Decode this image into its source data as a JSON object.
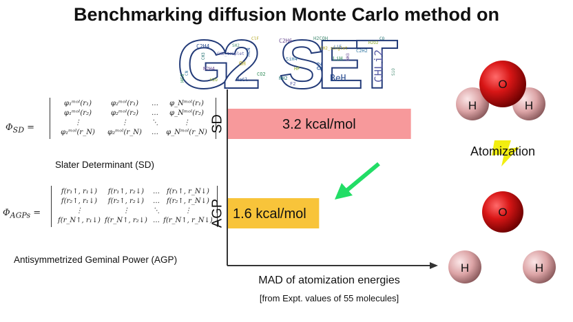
{
  "title": "Benchmarking diffusion Monte Carlo method on",
  "logo": {
    "big_letters": [
      "G",
      "2",
      "S",
      "E",
      "T"
    ],
    "words": [
      "C2H4",
      "HCO",
      "N2H4",
      "CN",
      "H2O",
      "CH3",
      "CH2_triplet",
      "SH2",
      "OH",
      "HCN",
      "NaCl",
      "CO2",
      "C2H6",
      "SiH4",
      "HF",
      "NH2",
      "F2",
      "H2COH",
      "CH2_singlet",
      "O2",
      "BeH",
      "LiH",
      "NH3",
      "C2H2",
      "H2O2",
      "CO",
      "CHLi2",
      "SiO",
      "ClF",
      "LiF"
    ]
  },
  "left": {
    "sd_symbol": "Φ",
    "sd_subscript": "SD",
    "sd_matrix": [
      [
        "φ₁ᵐᵒˡ(r₁)",
        "φ₂ᵐᵒˡ(r₁)",
        "…",
        "φ_Nᵐᵒˡ(r₁)"
      ],
      [
        "φ₁ᵐᵒˡ(r₂)",
        "φ₂ᵐᵒˡ(r₂)",
        "…",
        "φ_Nᵐᵒˡ(r₂)"
      ],
      [
        "⋮",
        "⋮",
        "⋱",
        "⋮"
      ],
      [
        "φ₁ᵐᵒˡ(r_N)",
        "φ₂ᵐᵒˡ(r_N)",
        "…",
        "φ_Nᵐᵒˡ(r_N)"
      ]
    ],
    "sd_caption": "Slater Determinant (SD)",
    "agp_symbol": "Φ",
    "agp_subscript": "AGPs",
    "agp_matrix": [
      [
        "f(r₁↑, r₁↓)",
        "f(r₁↑, r₂↓)",
        "…",
        "f(r₁↑, r_N↓)"
      ],
      [
        "f(r₂↑, r₁↓)",
        "f(r₂↑, r₂↓)",
        "…",
        "f(r₂↑, r_N↓)"
      ],
      [
        "⋮",
        "⋮",
        "⋱",
        "⋮"
      ],
      [
        "f(r_N↑, r₁↓)",
        "f(r_N↑, r₂↓)",
        "…",
        "f(r_N↑, r_N↓)"
      ]
    ],
    "agp_caption": "Antisymmetrized Geminal Power (AGP)"
  },
  "chart_data": {
    "type": "bar",
    "orientation": "horizontal",
    "categories": [
      "SD",
      "AGP"
    ],
    "values": [
      3.2,
      1.6
    ],
    "data_labels": [
      "3.2 kcal/mol",
      "1.6 kcal/mol"
    ],
    "bar_colors": [
      "#f7999b",
      "#f8c43a"
    ],
    "xlabel": "MAD of atomization energies",
    "xlabel_sub": "[from Expt. values of 55 molecules]",
    "xlim": [
      0,
      3.6
    ],
    "grid": false,
    "arrow_color": "#22dd66"
  },
  "right": {
    "atomization_label": "Atomization",
    "o_label": "O",
    "h_label": "H",
    "o_color": "#cc1010",
    "h_color": "#e8b0b2",
    "bolt_color": "#f2ee10"
  }
}
